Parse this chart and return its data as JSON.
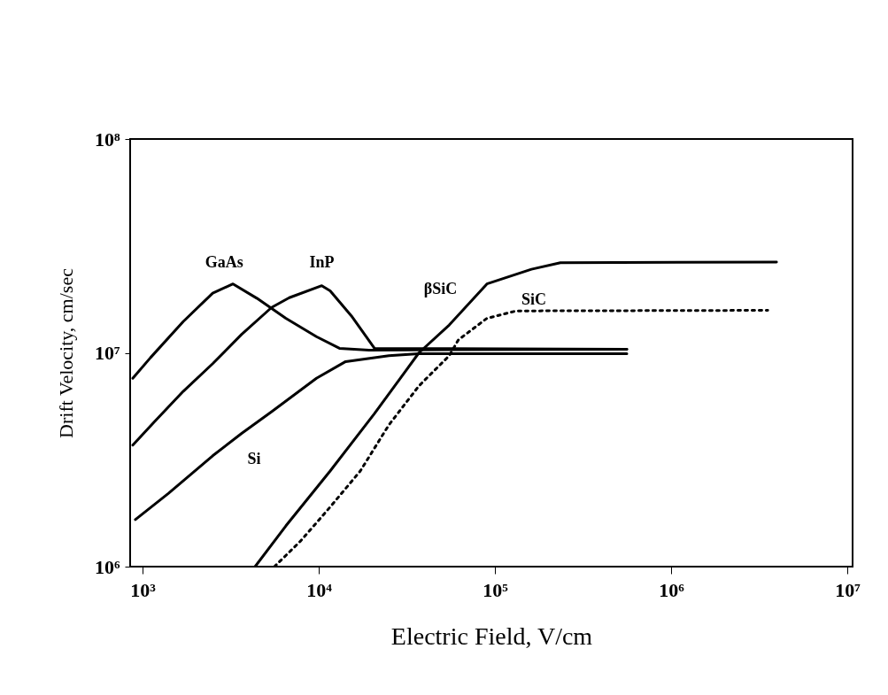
{
  "chart_data": {
    "type": "line",
    "xlabel": "Electric Field, V/cm",
    "ylabel": "Drift Velocity, cm/sec",
    "log": "xy",
    "xlim": [
      850,
      10700000
    ],
    "ylim": [
      1000000,
      100000000
    ],
    "xticks": [
      {
        "value": 1000,
        "label": "10³"
      },
      {
        "value": 10000,
        "label": "10⁴"
      },
      {
        "value": 100000,
        "label": "10⁵"
      },
      {
        "value": 1000000,
        "label": "10⁶"
      },
      {
        "value": 10000000,
        "label": "10⁷"
      }
    ],
    "yticks": [
      {
        "value": 1000000,
        "label": "10⁶"
      },
      {
        "value": 10000000,
        "label": "10⁷"
      },
      {
        "value": 100000000,
        "label": "10⁸"
      }
    ],
    "grid": false,
    "legend": false,
    "marker": "none",
    "series": [
      {
        "name": "GaAs",
        "color": "#000000",
        "line_style": "solid",
        "x": [
          880,
          1110,
          1700,
          2500,
          3260,
          4450,
          6500,
          9700,
          13100,
          19300,
          560000
        ],
        "values": [
          7600000,
          9500000,
          14000000,
          19000000,
          21000000,
          18000000,
          14500000,
          11900000,
          10500000,
          10300000,
          10400000
        ]
      },
      {
        "name": "InP",
        "color": "#000000",
        "line_style": "solid",
        "x": [
          880,
          1150,
          1700,
          2500,
          3650,
          5400,
          6800,
          10400,
          11600,
          15300,
          20700,
          560000
        ],
        "values": [
          3700000,
          4700000,
          6600000,
          8900000,
          12200000,
          16300000,
          18100000,
          20600000,
          19500000,
          14900000,
          10500000,
          10400000
        ]
      },
      {
        "name": "Si",
        "color": "#000000",
        "line_style": "solid",
        "x": [
          910,
          1400,
          2500,
          3650,
          5400,
          9700,
          14200,
          25000,
          37000,
          560000
        ],
        "values": [
          1660000,
          2200000,
          3300000,
          4200000,
          5300000,
          7600000,
          9100000,
          9700000,
          9900000,
          9900000
        ]
      },
      {
        "name": "βSiC",
        "color": "#000000",
        "line_style": "solid",
        "x": [
          4350,
          6500,
          11600,
          20700,
          30700,
          37000,
          55000,
          90000,
          161000,
          235000,
          3960000
        ],
        "values": [
          1000000,
          1550000,
          2800000,
          5200000,
          8100000,
          10000000,
          13500000,
          21000000,
          24600000,
          26400000,
          26600000
        ]
      },
      {
        "name": "SiC",
        "color": "#000000",
        "line_style": "dotted",
        "x": [
          5600,
          7900,
          11600,
          17200,
          25000,
          37000,
          55000,
          62000,
          90000,
          132000,
          3530000
        ],
        "values": [
          1000000,
          1320000,
          1900000,
          2800000,
          4600000,
          7000000,
          9700000,
          11500000,
          14500000,
          15700000,
          15800000
        ]
      }
    ]
  }
}
